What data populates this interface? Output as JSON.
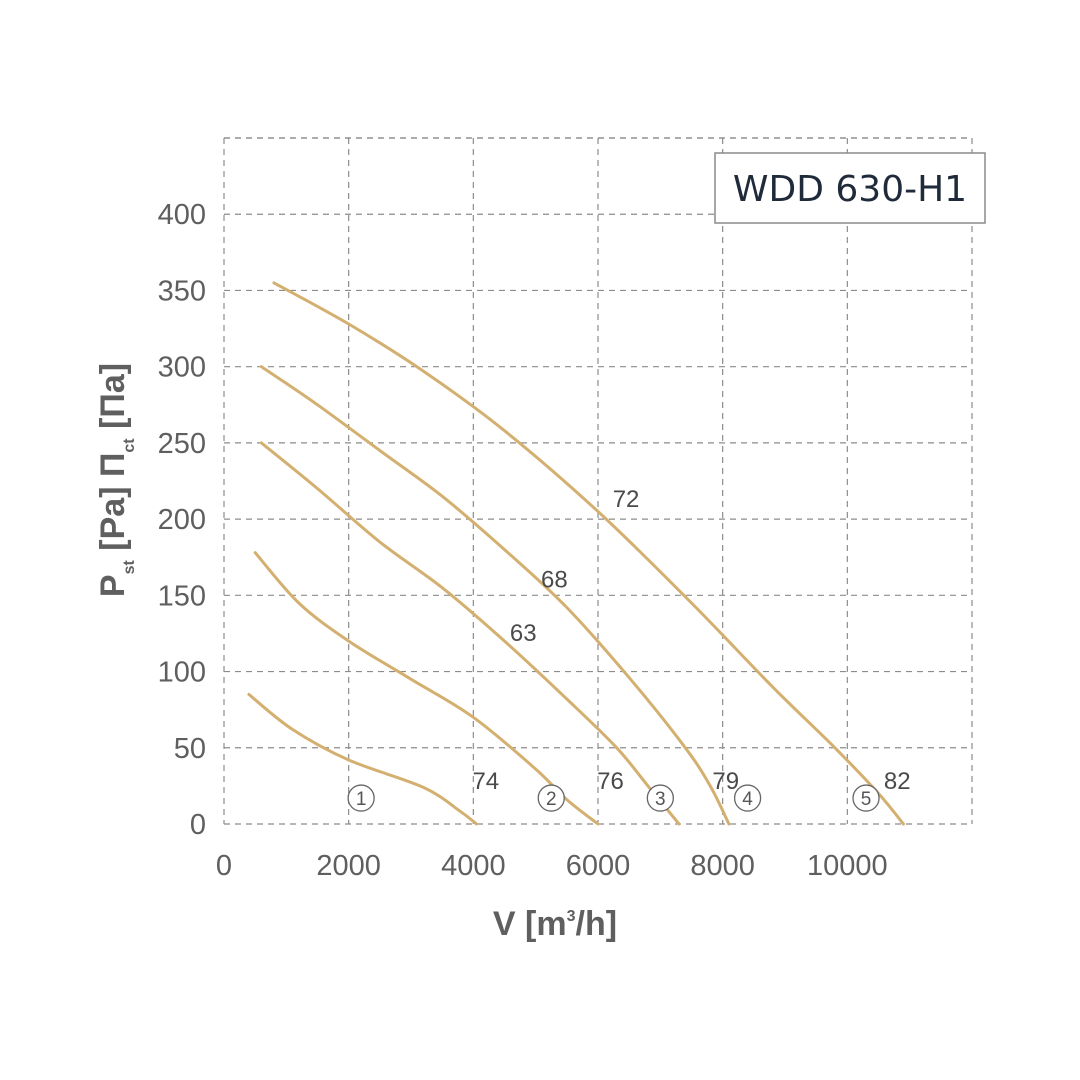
{
  "chart_data": {
    "type": "line",
    "title": "WDD 630-H1",
    "xlabel": "V [m³/h]",
    "ylabel_en": "P_st [Pa]",
    "ylabel_ru": "П_ст [Па]",
    "xlim": [
      0,
      12000
    ],
    "ylim": [
      0,
      450
    ],
    "xticks": [
      0,
      2000,
      4000,
      6000,
      8000,
      10000
    ],
    "yticks": [
      0,
      50,
      100,
      150,
      200,
      250,
      300,
      350,
      400
    ],
    "grid": true,
    "line_color": "#d4b070",
    "series": [
      {
        "curve_id": "1",
        "points": [
          [
            400,
            85
          ],
          [
            1100,
            62
          ],
          [
            2000,
            42
          ],
          [
            3200,
            24
          ],
          [
            3800,
            8
          ],
          [
            4050,
            0
          ]
        ]
      },
      {
        "curve_id": "2",
        "points": [
          [
            500,
            178
          ],
          [
            1200,
            145
          ],
          [
            2000,
            120
          ],
          [
            3000,
            95
          ],
          [
            4000,
            70
          ],
          [
            5000,
            36
          ],
          [
            5500,
            16
          ],
          [
            6000,
            0
          ]
        ]
      },
      {
        "curve_id": "3",
        "points": [
          [
            600,
            250
          ],
          [
            1500,
            220
          ],
          [
            2500,
            185
          ],
          [
            3500,
            155
          ],
          [
            4500,
            120
          ],
          [
            5500,
            82
          ],
          [
            6300,
            50
          ],
          [
            6800,
            25
          ],
          [
            7300,
            0
          ]
        ]
      },
      {
        "curve_id": "4",
        "points": [
          [
            600,
            300
          ],
          [
            1500,
            275
          ],
          [
            2500,
            245
          ],
          [
            3500,
            215
          ],
          [
            4500,
            180
          ],
          [
            5500,
            142
          ],
          [
            6500,
            96
          ],
          [
            7400,
            50
          ],
          [
            7800,
            25
          ],
          [
            8100,
            0
          ]
        ]
      },
      {
        "curve_id": "5",
        "points": [
          [
            800,
            355
          ],
          [
            2000,
            328
          ],
          [
            3200,
            297
          ],
          [
            4500,
            258
          ],
          [
            6000,
            205
          ],
          [
            7500,
            145
          ],
          [
            8800,
            90
          ],
          [
            9800,
            50
          ],
          [
            10500,
            20
          ],
          [
            10900,
            0
          ]
        ]
      }
    ],
    "annotations": [
      {
        "text": "72",
        "x": 6450,
        "y": 208
      },
      {
        "text": "68",
        "x": 5300,
        "y": 155
      },
      {
        "text": "63",
        "x": 4800,
        "y": 120
      },
      {
        "text": "74",
        "x": 4200,
        "y": 23
      },
      {
        "text": "76",
        "x": 6200,
        "y": 23
      },
      {
        "text": "79",
        "x": 8050,
        "y": 23
      },
      {
        "text": "82",
        "x": 10800,
        "y": 23
      }
    ],
    "curve_markers": [
      {
        "text": "1",
        "x": 2200,
        "y": 17
      },
      {
        "text": "2",
        "x": 5250,
        "y": 17
      },
      {
        "text": "3",
        "x": 7000,
        "y": 17
      },
      {
        "text": "4",
        "x": 8400,
        "y": 17
      },
      {
        "text": "5",
        "x": 10300,
        "y": 17
      }
    ]
  }
}
